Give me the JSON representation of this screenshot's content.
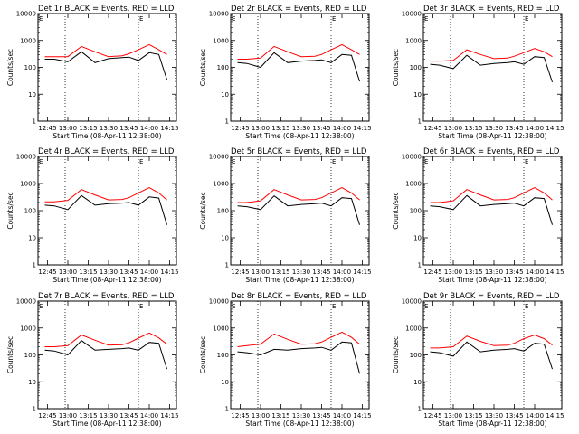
{
  "common": {
    "ylabel": "Counts/sec",
    "xlabel": "Start Time (08-Apr-11 12:38:00)",
    "xtick_labels": [
      "12:45",
      "13:00",
      "13:15",
      "13:30",
      "13:45",
      "14:00",
      "14:15"
    ],
    "ytick_labels": [
      "1",
      "10",
      "100",
      "1000",
      "10000"
    ],
    "marker_label": "E",
    "colors": {
      "events": "#000000",
      "lld": "#ff0000",
      "axes": "#000000"
    }
  },
  "chart_data": [
    {
      "type": "line",
      "title": "Det 1r BLACK = Events, RED = LLD",
      "yscale": "log",
      "ylim": [
        1,
        10000
      ],
      "xlim": [
        "12:38",
        "14:20"
      ],
      "grid": false,
      "vlines": [
        "12:58",
        "13:52"
      ],
      "x": [
        "12:43",
        "12:50",
        "13:00",
        "13:10",
        "13:20",
        "13:30",
        "13:40",
        "13:45",
        "13:52",
        "14:00",
        "14:07",
        "14:13"
      ],
      "series": [
        {
          "values": [
            250,
            250,
            250,
            600,
            380,
            250,
            270,
            320,
            450,
            700,
            450,
            300
          ]
        },
        {
          "values": [
            200,
            200,
            160,
            380,
            150,
            210,
            230,
            240,
            180,
            350,
            300,
            35
          ]
        }
      ]
    },
    {
      "type": "line",
      "title": "Det 2r BLACK = Events, RED = LLD",
      "yscale": "log",
      "ylim": [
        1,
        10000
      ],
      "xlim": [
        "12:38",
        "14:20"
      ],
      "grid": false,
      "vlines": [
        "12:58",
        "13:52"
      ],
      "x": [
        "12:43",
        "12:50",
        "13:00",
        "13:10",
        "13:20",
        "13:30",
        "13:40",
        "13:45",
        "13:52",
        "14:00",
        "14:07",
        "14:13"
      ],
      "series": [
        {
          "values": [
            200,
            200,
            220,
            600,
            380,
            250,
            260,
            300,
            450,
            700,
            450,
            300
          ]
        },
        {
          "values": [
            150,
            140,
            100,
            350,
            150,
            170,
            180,
            190,
            150,
            300,
            280,
            30
          ]
        }
      ]
    },
    {
      "type": "line",
      "title": "Det 3r BLACK = Events, RED = LLD",
      "yscale": "log",
      "ylim": [
        1,
        10000
      ],
      "xlim": [
        "12:38",
        "14:20"
      ],
      "grid": false,
      "vlines": [
        "12:58",
        "13:52"
      ],
      "x": [
        "12:43",
        "12:50",
        "13:00",
        "13:10",
        "13:20",
        "13:30",
        "13:40",
        "13:45",
        "13:52",
        "14:00",
        "14:07",
        "14:13"
      ],
      "series": [
        {
          "values": [
            170,
            170,
            180,
            450,
            300,
            210,
            220,
            260,
            350,
            500,
            380,
            250
          ]
        },
        {
          "values": [
            130,
            120,
            90,
            280,
            120,
            140,
            150,
            160,
            130,
            250,
            230,
            28
          ]
        }
      ]
    },
    {
      "type": "line",
      "title": "Det 4r BLACK = Events, RED = LLD",
      "yscale": "log",
      "ylim": [
        1,
        10000
      ],
      "xlim": [
        "12:38",
        "14:20"
      ],
      "grid": false,
      "vlines": [
        "12:58",
        "13:52"
      ],
      "x": [
        "12:43",
        "12:50",
        "13:00",
        "13:10",
        "13:20",
        "13:30",
        "13:40",
        "13:45",
        "13:52",
        "14:00",
        "14:07",
        "14:13"
      ],
      "series": [
        {
          "values": [
            210,
            210,
            240,
            600,
            380,
            250,
            260,
            300,
            450,
            700,
            450,
            250
          ]
        },
        {
          "values": [
            160,
            150,
            110,
            360,
            160,
            180,
            190,
            200,
            160,
            320,
            290,
            30
          ]
        }
      ]
    },
    {
      "type": "line",
      "title": "Det 5r BLACK = Events, RED = LLD",
      "yscale": "log",
      "ylim": [
        1,
        10000
      ],
      "xlim": [
        "12:38",
        "14:20"
      ],
      "grid": false,
      "vlines": [
        "12:58",
        "13:52"
      ],
      "x": [
        "12:43",
        "12:50",
        "13:00",
        "13:10",
        "13:20",
        "13:30",
        "13:40",
        "13:45",
        "13:52",
        "14:00",
        "14:07",
        "14:13"
      ],
      "series": [
        {
          "values": [
            200,
            200,
            230,
            600,
            380,
            250,
            260,
            300,
            450,
            700,
            450,
            250
          ]
        },
        {
          "values": [
            150,
            140,
            110,
            350,
            150,
            170,
            180,
            190,
            150,
            300,
            280,
            30
          ]
        }
      ]
    },
    {
      "type": "line",
      "title": "Det 6r BLACK = Events, RED = LLD",
      "yscale": "log",
      "ylim": [
        1,
        10000
      ],
      "xlim": [
        "12:38",
        "14:20"
      ],
      "grid": false,
      "vlines": [
        "12:58",
        "13:52"
      ],
      "x": [
        "12:43",
        "12:50",
        "13:00",
        "13:10",
        "13:20",
        "13:30",
        "13:40",
        "13:45",
        "13:52",
        "14:00",
        "14:07",
        "14:13"
      ],
      "series": [
        {
          "values": [
            200,
            200,
            230,
            600,
            380,
            250,
            260,
            300,
            450,
            700,
            450,
            250
          ]
        },
        {
          "values": [
            150,
            140,
            110,
            360,
            150,
            170,
            180,
            190,
            150,
            300,
            280,
            30
          ]
        }
      ]
    },
    {
      "type": "line",
      "title": "Det 7r BLACK = Events, RED = LLD",
      "yscale": "log",
      "ylim": [
        1,
        10000
      ],
      "xlim": [
        "12:38",
        "14:20"
      ],
      "grid": false,
      "vlines": [
        "12:58",
        "13:52"
      ],
      "x": [
        "12:43",
        "12:50",
        "13:00",
        "13:10",
        "13:20",
        "13:30",
        "13:40",
        "13:45",
        "13:52",
        "14:00",
        "14:07",
        "14:13"
      ],
      "series": [
        {
          "values": [
            200,
            200,
            220,
            550,
            350,
            230,
            240,
            280,
            420,
            650,
            430,
            250
          ]
        },
        {
          "values": [
            150,
            140,
            100,
            340,
            150,
            160,
            170,
            180,
            150,
            290,
            270,
            30
          ]
        }
      ]
    },
    {
      "type": "line",
      "title": "Det 8r BLACK = Events, RED = LLD",
      "yscale": "log",
      "ylim": [
        1,
        10000
      ],
      "xlim": [
        "12:38",
        "14:20"
      ],
      "grid": false,
      "vlines": [
        "12:58",
        "13:52"
      ],
      "x": [
        "12:43",
        "12:50",
        "13:00",
        "13:10",
        "13:20",
        "13:30",
        "13:40",
        "13:45",
        "13:52",
        "14:00",
        "14:07",
        "14:13"
      ],
      "series": [
        {
          "values": [
            200,
            220,
            250,
            600,
            380,
            250,
            260,
            300,
            450,
            700,
            450,
            250
          ]
        },
        {
          "values": [
            130,
            120,
            100,
            160,
            150,
            170,
            180,
            190,
            150,
            300,
            280,
            20
          ]
        }
      ]
    },
    {
      "type": "line",
      "title": "Det 9r BLACK = Events, RED = LLD",
      "yscale": "log",
      "ylim": [
        1,
        10000
      ],
      "xlim": [
        "12:38",
        "14:20"
      ],
      "grid": false,
      "vlines": [
        "12:58",
        "13:52"
      ],
      "x": [
        "12:43",
        "12:50",
        "13:00",
        "13:10",
        "13:20",
        "13:30",
        "13:40",
        "13:45",
        "13:52",
        "14:00",
        "14:07",
        "14:13"
      ],
      "series": [
        {
          "values": [
            180,
            180,
            200,
            500,
            320,
            220,
            230,
            270,
            400,
            550,
            400,
            230
          ]
        },
        {
          "values": [
            130,
            120,
            90,
            300,
            130,
            150,
            160,
            170,
            140,
            270,
            250,
            30
          ]
        }
      ]
    }
  ]
}
